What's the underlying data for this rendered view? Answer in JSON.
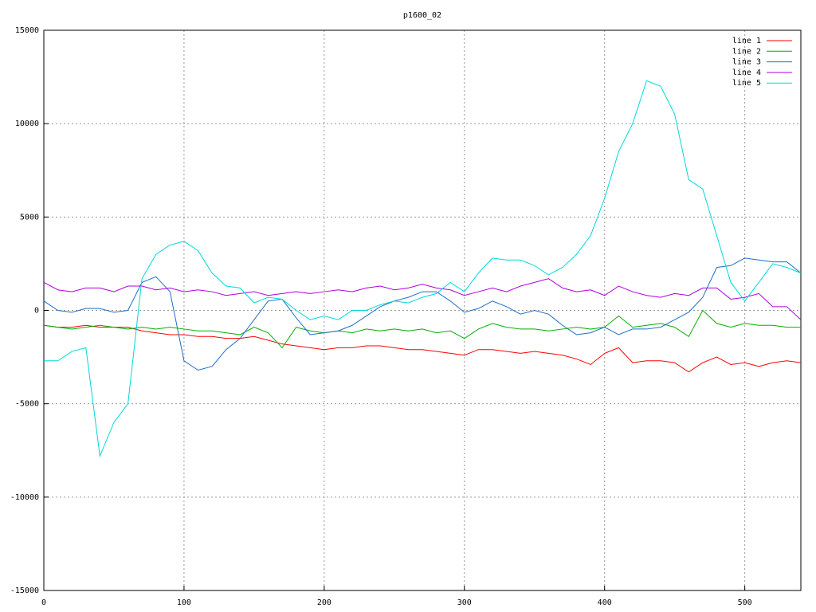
{
  "chart_data": {
    "type": "line",
    "title": "p1600_02",
    "x": [
      0,
      10,
      20,
      30,
      40,
      50,
      60,
      70,
      80,
      90,
      100,
      110,
      120,
      130,
      140,
      150,
      160,
      170,
      180,
      190,
      200,
      210,
      220,
      230,
      240,
      250,
      260,
      270,
      280,
      290,
      300,
      310,
      320,
      330,
      340,
      350,
      360,
      370,
      380,
      390,
      400,
      410,
      420,
      430,
      440,
      450,
      460,
      470,
      480,
      490,
      500,
      510,
      520,
      530,
      540
    ],
    "series": [
      {
        "name": "line 1",
        "color": "#ff0000",
        "values": [
          -800,
          -900,
          -900,
          -800,
          -900,
          -900,
          -900,
          -1100,
          -1200,
          -1300,
          -1300,
          -1400,
          -1400,
          -1500,
          -1500,
          -1400,
          -1600,
          -1800,
          -1900,
          -2000,
          -2100,
          -2000,
          -2000,
          -1900,
          -1900,
          -2000,
          -2100,
          -2100,
          -2200,
          -2300,
          -2400,
          -2100,
          -2100,
          -2200,
          -2300,
          -2200,
          -2300,
          -2400,
          -2600,
          -2900,
          -2300,
          -2000,
          -2800,
          -2700,
          -2700,
          -2800,
          -3300,
          -2800,
          -2500,
          -2900,
          -2800,
          -3000,
          -2800,
          -2700,
          -2800
        ]
      },
      {
        "name": "line 2",
        "color": "#00b000",
        "values": [
          -800,
          -900,
          -1000,
          -900,
          -800,
          -900,
          -1000,
          -900,
          -1000,
          -900,
          -1000,
          -1100,
          -1100,
          -1200,
          -1300,
          -900,
          -1200,
          -2000,
          -900,
          -1100,
          -1200,
          -1100,
          -1200,
          -1000,
          -1100,
          -1000,
          -1100,
          -1000,
          -1200,
          -1100,
          -1500,
          -1000,
          -700,
          -900,
          -1000,
          -1000,
          -1100,
          -1000,
          -900,
          -1000,
          -900,
          -300,
          -900,
          -800,
          -700,
          -900,
          -1400,
          0,
          -700,
          -900,
          -700,
          -800,
          -800,
          -900,
          -900
        ]
      },
      {
        "name": "line 3",
        "color": "#1e6ec8",
        "values": [
          500,
          0,
          -100,
          100,
          100,
          -100,
          0,
          1500,
          1800,
          1000,
          -2700,
          -3200,
          -3000,
          -2100,
          -1500,
          -500,
          500,
          600,
          -400,
          -1300,
          -1200,
          -1100,
          -800,
          -300,
          200,
          500,
          700,
          1000,
          1000,
          500,
          -100,
          100,
          500,
          200,
          -200,
          0,
          -200,
          -800,
          -1300,
          -1200,
          -900,
          -1300,
          -1000,
          -1000,
          -900,
          -500,
          -100,
          700,
          2300,
          2400,
          2800,
          2700,
          2600,
          2600,
          2000
        ]
      },
      {
        "name": "line 4",
        "color": "#b000e0",
        "values": [
          1500,
          1100,
          1000,
          1200,
          1200,
          1000,
          1300,
          1300,
          1100,
          1200,
          1000,
          1100,
          1000,
          800,
          900,
          1000,
          800,
          900,
          1000,
          900,
          1000,
          1100,
          1000,
          1200,
          1300,
          1100,
          1200,
          1400,
          1200,
          1100,
          800,
          1000,
          1200,
          1000,
          1300,
          1500,
          1700,
          1200,
          1000,
          1100,
          800,
          1300,
          1000,
          800,
          700,
          900,
          800,
          1200,
          1200,
          600,
          700,
          900,
          200,
          200,
          -500
        ]
      },
      {
        "name": "line 5",
        "color": "#00d8d8",
        "values": [
          -2700,
          -2700,
          -2200,
          -2000,
          -7800,
          -6000,
          -5000,
          1700,
          3000,
          3500,
          3700,
          3200,
          2000,
          1300,
          1200,
          400,
          700,
          600,
          0,
          -500,
          -300,
          -500,
          0,
          0,
          300,
          500,
          400,
          700,
          900,
          1500,
          1000,
          2000,
          2800,
          2700,
          2700,
          2400,
          1900,
          2300,
          3000,
          4000,
          6000,
          8500,
          10000,
          12300,
          12000,
          10500,
          7000,
          6500,
          4000,
          1500,
          500,
          1500,
          2500,
          2300,
          2000
        ]
      }
    ],
    "xlim": [
      0,
      540
    ],
    "xticks": [
      0,
      100,
      200,
      300,
      400,
      500
    ],
    "ylim": [
      -15000,
      15000
    ],
    "yticks": [
      -15000,
      -10000,
      -5000,
      0,
      5000,
      10000,
      15000
    ],
    "grid": true,
    "legend": "top-right"
  }
}
